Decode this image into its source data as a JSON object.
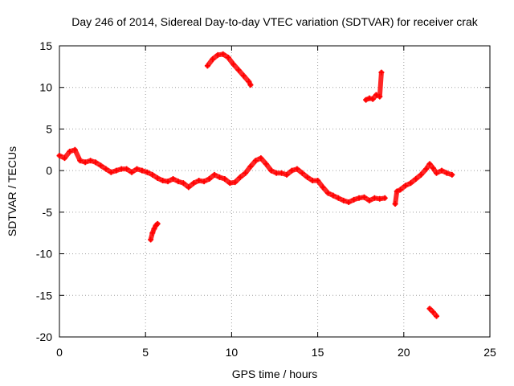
{
  "chart_data": {
    "type": "scatter",
    "title": "Day 246 of 2014, Sidereal Day-to-day VTEC variation (SDTVAR) for receiver crak",
    "xlabel": "GPS time / hours",
    "ylabel": "SDTVAR / TECUs",
    "xlim": [
      0,
      25
    ],
    "ylim": [
      -20,
      15
    ],
    "xticks": [
      0,
      5,
      10,
      15,
      20,
      25
    ],
    "yticks": [
      -20,
      -15,
      -10,
      -5,
      0,
      5,
      10,
      15
    ],
    "grid": true,
    "marker": "+",
    "color": "#ff0000",
    "series": [
      {
        "name": "main",
        "x": [
          0.0,
          0.3,
          0.6,
          0.9,
          1.2,
          1.5,
          1.8,
          2.1,
          2.4,
          2.7,
          3.0,
          3.3,
          3.6,
          3.9,
          4.2,
          4.5,
          4.8,
          5.1,
          5.4,
          5.7,
          6.0,
          6.3,
          6.6,
          6.9,
          7.2,
          7.5,
          7.8,
          8.1,
          8.4,
          8.7,
          9.0,
          9.3,
          9.6,
          9.9,
          10.2,
          10.5,
          10.8,
          11.1,
          11.4,
          11.7,
          12.0,
          12.3,
          12.6,
          12.9,
          13.2,
          13.5,
          13.8,
          14.1,
          14.4,
          14.7,
          15.0,
          15.3,
          15.6,
          15.9,
          16.2,
          16.5,
          16.8,
          17.1,
          17.4,
          17.7,
          18.0,
          18.3,
          18.6,
          18.9
        ],
        "y": [
          1.8,
          1.5,
          2.3,
          2.5,
          1.2,
          1.0,
          1.2,
          1.0,
          0.6,
          0.2,
          -0.2,
          0.0,
          0.2,
          0.2,
          -0.2,
          0.2,
          0.0,
          -0.2,
          -0.5,
          -0.9,
          -1.2,
          -1.3,
          -1.0,
          -1.3,
          -1.5,
          -2.0,
          -1.5,
          -1.2,
          -1.3,
          -1.0,
          -0.5,
          -0.8,
          -1.0,
          -1.5,
          -1.4,
          -0.8,
          -0.3,
          0.5,
          1.2,
          1.5,
          0.8,
          0.0,
          -0.3,
          -0.3,
          -0.5,
          0.0,
          0.2,
          -0.3,
          -0.8,
          -1.2,
          -1.2,
          -2.0,
          -2.7,
          -3.0,
          -3.3,
          -3.6,
          -3.8,
          -3.5,
          -3.3,
          -3.2,
          -3.6,
          -3.3,
          -3.4,
          -3.3
        ]
      },
      {
        "name": "segment-21h",
        "x": [
          19.5,
          19.6,
          19.8,
          20.1,
          20.4,
          20.7,
          21.0,
          21.3,
          21.5,
          21.7,
          21.9,
          22.2,
          22.5,
          22.8
        ],
        "y": [
          -4.0,
          -2.5,
          -2.3,
          -1.8,
          -1.5,
          -1.0,
          -0.5,
          0.2,
          0.8,
          0.3,
          -0.3,
          0.0,
          -0.3,
          -0.5
        ]
      },
      {
        "name": "segment-5h",
        "x": [
          5.3,
          5.4,
          5.5,
          5.6,
          5.7
        ],
        "y": [
          -8.3,
          -7.5,
          -7.0,
          -6.6,
          -6.4
        ]
      },
      {
        "name": "arc-10h",
        "x": [
          8.6,
          8.9,
          9.2,
          9.5,
          9.8,
          10.1,
          10.4,
          10.7,
          11.0,
          11.1
        ],
        "y": [
          12.6,
          13.4,
          13.9,
          14.0,
          13.6,
          12.8,
          12.1,
          11.4,
          10.7,
          10.3
        ]
      },
      {
        "name": "segment-18h",
        "x": [
          17.8,
          18.0,
          18.2,
          18.4,
          18.6,
          18.7
        ],
        "y": [
          8.5,
          8.7,
          8.6,
          9.1,
          8.9,
          11.8
        ]
      },
      {
        "name": "segment-22h",
        "x": [
          21.5,
          21.7,
          21.9
        ],
        "y": [
          -16.6,
          -17.0,
          -17.5
        ]
      }
    ]
  }
}
